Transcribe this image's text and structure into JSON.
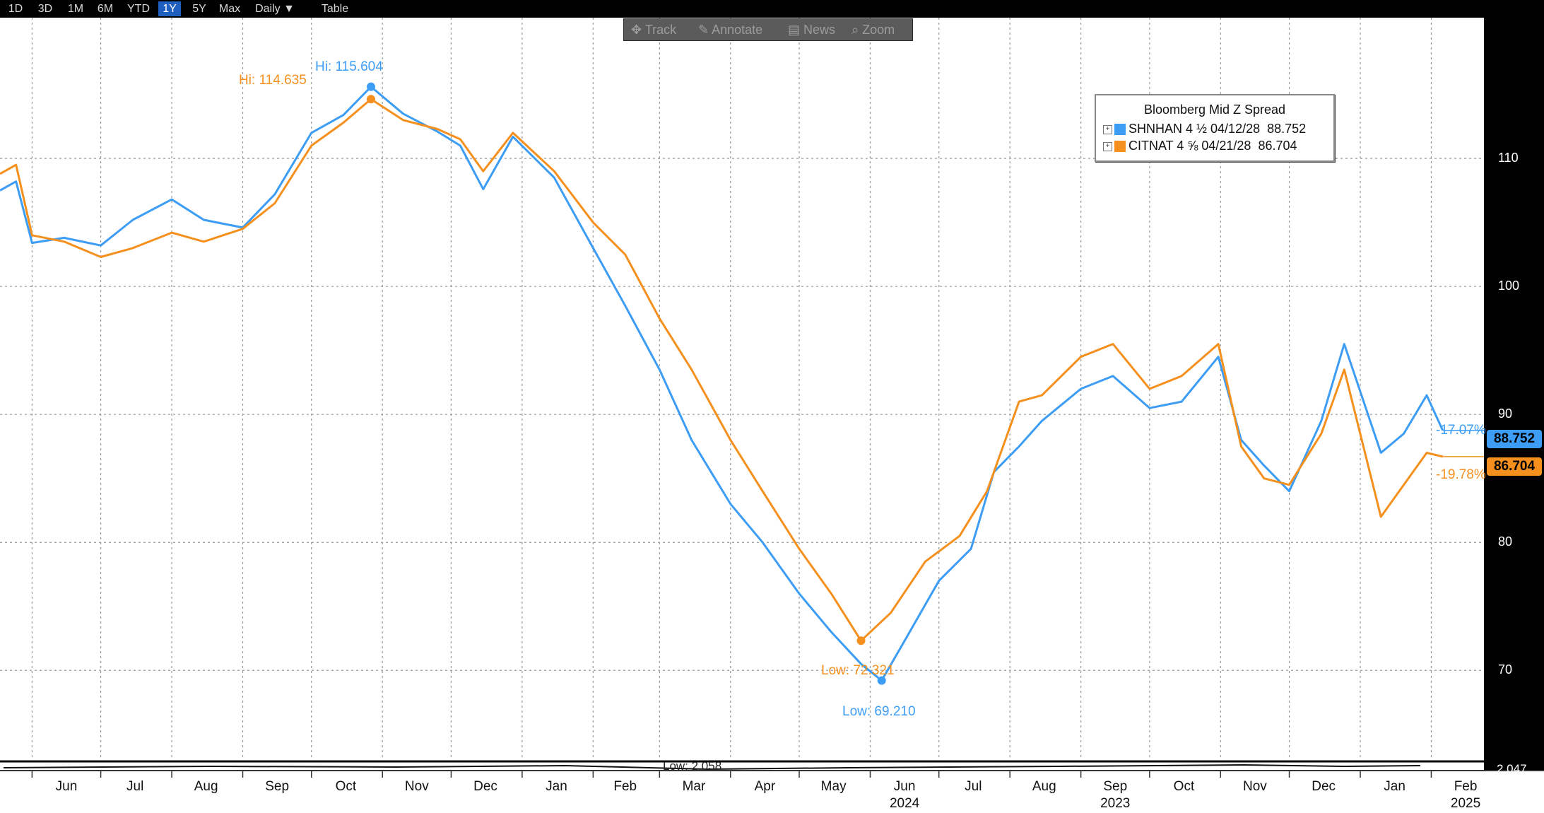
{
  "toolbar": {
    "buttons": [
      "1D",
      "3D",
      "1M",
      "6M",
      "YTD",
      "1Y",
      "5Y",
      "Max",
      "Daily ▼",
      "Table"
    ],
    "active": "1Y"
  },
  "tools": {
    "track": "Track",
    "annotate": "Annotate",
    "news": "News",
    "zoom": "Zoom"
  },
  "legend": {
    "title": "Bloomberg Mid Z Spread",
    "rows": [
      {
        "name": "SHNHAN 4 ½ 04/12/28",
        "value": "88.752",
        "color": "#3d9df5"
      },
      {
        "name": "CITNAT 4 ⅝ 04/21/28",
        "value": "86.704",
        "color": "#f5901e"
      }
    ]
  },
  "last_tags": [
    {
      "value": "88.752",
      "pct": "-17.07%",
      "color": "#3d9df5",
      "text_color": "#000000"
    },
    {
      "value": "86.704",
      "pct": "-19.78%",
      "color": "#f5901e",
      "text_color": "#000000"
    }
  ],
  "annotations": {
    "blue_hi": "Hi: 115.604",
    "orange_hi": "Hi: 114.635",
    "orange_low": "Low: 72.321",
    "blue_low": "Low: 69.210",
    "sub_low": "Low: 2.058",
    "sub_last": "2.047"
  },
  "chart_data": {
    "type": "line",
    "title": "Bloomberg Mid Z Spread",
    "ylim": [
      63,
      121
    ],
    "yticks": [
      70,
      80,
      90,
      100,
      110
    ],
    "x_start": "2023-05-18",
    "x_end": "2025-02-24",
    "months": [
      "Jun",
      "Jul",
      "Aug",
      "Sep",
      "Oct",
      "Nov",
      "Dec",
      "Jan",
      "Feb",
      "Mar",
      "Apr",
      "May",
      "Jun",
      "Jul",
      "Aug",
      "Sep",
      "Oct",
      "Nov",
      "Dec",
      "Jan",
      "Feb"
    ],
    "years": [
      {
        "label": "2023",
        "month": "Sep"
      },
      {
        "label": "2024",
        "month": "Jun"
      },
      {
        "label": "2025",
        "month": "Feb"
      }
    ],
    "grid": true,
    "legend_position": "top-right",
    "series": [
      {
        "name": "SHNHAN 4 ½ 04/12/28",
        "color": "#3d9df5",
        "points": [
          [
            "2023-05-18",
            107.5
          ],
          [
            "2023-05-25",
            108.2
          ],
          [
            "2023-06-01",
            103.4
          ],
          [
            "2023-06-15",
            103.8
          ],
          [
            "2023-07-01",
            103.2
          ],
          [
            "2023-07-15",
            105.2
          ],
          [
            "2023-08-01",
            106.8
          ],
          [
            "2023-08-15",
            105.2
          ],
          [
            "2023-09-01",
            104.6
          ],
          [
            "2023-09-15",
            107.2
          ],
          [
            "2023-10-01",
            112.0
          ],
          [
            "2023-10-15",
            113.4
          ],
          [
            "2023-10-27",
            115.604
          ],
          [
            "2023-11-10",
            113.5
          ],
          [
            "2023-11-25",
            112.1
          ],
          [
            "2023-12-05",
            111.0
          ],
          [
            "2023-12-15",
            107.6
          ],
          [
            "2023-12-28",
            111.7
          ],
          [
            "2024-01-15",
            108.5
          ],
          [
            "2024-02-01",
            103.0
          ],
          [
            "2024-02-15",
            98.5
          ],
          [
            "2024-03-01",
            93.5
          ],
          [
            "2024-03-15",
            88.0
          ],
          [
            "2024-04-01",
            83.0
          ],
          [
            "2024-04-15",
            80.0
          ],
          [
            "2024-05-01",
            76.0
          ],
          [
            "2024-05-15",
            73.0
          ],
          [
            "2024-05-28",
            70.5
          ],
          [
            "2024-06-06",
            69.21
          ],
          [
            "2024-06-15",
            72.0
          ],
          [
            "2024-07-01",
            77.0
          ],
          [
            "2024-07-15",
            79.5
          ],
          [
            "2024-07-25",
            85.5
          ],
          [
            "2024-08-05",
            87.5
          ],
          [
            "2024-08-15",
            89.5
          ],
          [
            "2024-09-01",
            92.0
          ],
          [
            "2024-09-15",
            93.0
          ],
          [
            "2024-10-01",
            90.5
          ],
          [
            "2024-10-15",
            91.0
          ],
          [
            "2024-10-31",
            94.5
          ],
          [
            "2024-11-10",
            88.0
          ],
          [
            "2024-11-20",
            86.0
          ],
          [
            "2024-12-01",
            84.0
          ],
          [
            "2024-12-15",
            89.5
          ],
          [
            "2024-12-25",
            95.5
          ],
          [
            "2025-01-10",
            87.0
          ],
          [
            "2025-01-20",
            88.5
          ],
          [
            "2025-01-30",
            91.5
          ],
          [
            "2025-02-06",
            88.752
          ]
        ]
      },
      {
        "name": "CITNAT 4 ⅝ 04/21/28",
        "color": "#f5901e",
        "points": [
          [
            "2023-05-18",
            108.8
          ],
          [
            "2023-05-25",
            109.5
          ],
          [
            "2023-06-01",
            104.0
          ],
          [
            "2023-06-15",
            103.5
          ],
          [
            "2023-07-01",
            102.3
          ],
          [
            "2023-07-15",
            103.0
          ],
          [
            "2023-08-01",
            104.2
          ],
          [
            "2023-08-15",
            103.5
          ],
          [
            "2023-09-01",
            104.5
          ],
          [
            "2023-09-15",
            106.5
          ],
          [
            "2023-10-01",
            111.0
          ],
          [
            "2023-10-15",
            112.8
          ],
          [
            "2023-10-27",
            114.635
          ],
          [
            "2023-11-10",
            113.0
          ],
          [
            "2023-11-25",
            112.3
          ],
          [
            "2023-12-05",
            111.5
          ],
          [
            "2023-12-15",
            109.0
          ],
          [
            "2023-12-28",
            112.0
          ],
          [
            "2024-01-15",
            109.0
          ],
          [
            "2024-02-01",
            105.0
          ],
          [
            "2024-02-15",
            102.5
          ],
          [
            "2024-03-01",
            97.5
          ],
          [
            "2024-03-15",
            93.5
          ],
          [
            "2024-04-01",
            88.0
          ],
          [
            "2024-04-15",
            84.0
          ],
          [
            "2024-05-01",
            79.5
          ],
          [
            "2024-05-15",
            76.0
          ],
          [
            "2024-05-28",
            72.321
          ],
          [
            "2024-06-10",
            74.5
          ],
          [
            "2024-06-25",
            78.5
          ],
          [
            "2024-07-10",
            80.5
          ],
          [
            "2024-07-22",
            84.0
          ],
          [
            "2024-08-05",
            91.0
          ],
          [
            "2024-08-15",
            91.5
          ],
          [
            "2024-09-01",
            94.5
          ],
          [
            "2024-09-15",
            95.5
          ],
          [
            "2024-10-01",
            92.0
          ],
          [
            "2024-10-15",
            93.0
          ],
          [
            "2024-10-31",
            95.5
          ],
          [
            "2024-11-10",
            87.5
          ],
          [
            "2024-11-20",
            85.0
          ],
          [
            "2024-12-01",
            84.5
          ],
          [
            "2024-12-15",
            88.5
          ],
          [
            "2024-12-25",
            93.5
          ],
          [
            "2025-01-10",
            82.0
          ],
          [
            "2025-01-20",
            84.5
          ],
          [
            "2025-01-30",
            87.0
          ],
          [
            "2025-02-06",
            86.704
          ]
        ]
      }
    ]
  }
}
